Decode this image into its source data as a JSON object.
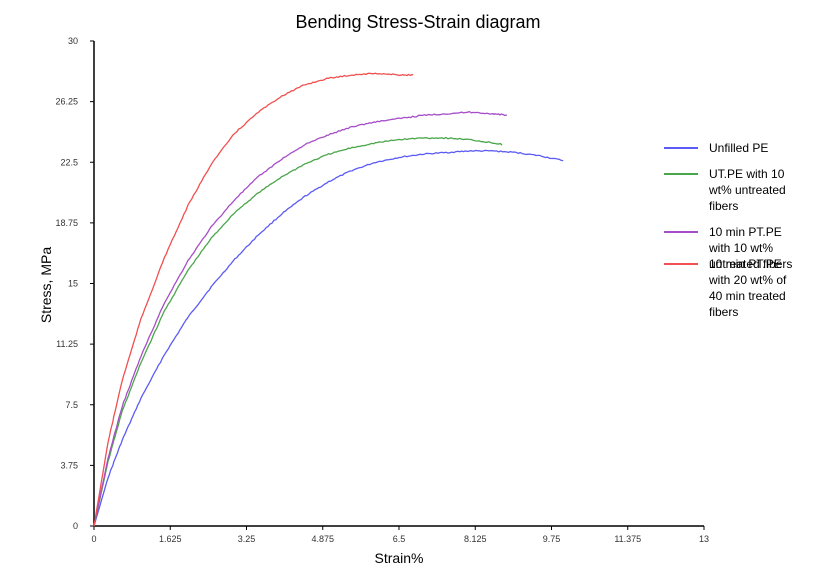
{
  "chart_data": {
    "type": "line",
    "title": "Bending  Stress-Strain diagram",
    "xlabel": "Strain%",
    "ylabel": "Stress, MPa",
    "xlim": [
      0,
      13
    ],
    "ylim": [
      0,
      30
    ],
    "xticks": [
      "0",
      "1.625",
      "3.25",
      "4.875",
      "6.5",
      "8.125",
      "9.75",
      "11.375",
      "13"
    ],
    "yticks": [
      "0",
      "3.75",
      "7.5",
      "11.25",
      "15",
      "18.75",
      "22.5",
      "26.25",
      "30"
    ],
    "grid": false,
    "legend_position": "right",
    "series": [
      {
        "name": "Unfilled PE",
        "color": "#5b5bf5",
        "x": [
          0,
          0.3,
          0.6,
          1.0,
          1.5,
          2.0,
          2.5,
          3.0,
          3.5,
          4.0,
          4.5,
          5.0,
          5.5,
          6.0,
          6.5,
          7.0,
          7.5,
          8.0,
          8.5,
          9.0,
          9.5,
          10.0
        ],
        "y": [
          0,
          3.0,
          5.3,
          7.9,
          10.6,
          12.9,
          14.8,
          16.5,
          18.0,
          19.3,
          20.4,
          21.3,
          22.0,
          22.5,
          22.8,
          23.0,
          23.1,
          23.2,
          23.2,
          23.1,
          22.9,
          22.6
        ]
      },
      {
        "name": "UT.PE  with 10 wt% untreated fibers",
        "color": "#4aa64a",
        "x": [
          0,
          0.3,
          0.6,
          1.0,
          1.5,
          2.0,
          2.5,
          3.0,
          3.5,
          4.0,
          4.5,
          5.0,
          5.5,
          6.0,
          6.5,
          7.0,
          7.5,
          8.0,
          8.5,
          8.7
        ],
        "y": [
          0,
          4.0,
          7.1,
          10.1,
          13.3,
          15.8,
          17.8,
          19.4,
          20.6,
          21.6,
          22.4,
          23.0,
          23.4,
          23.7,
          23.9,
          24.0,
          24.0,
          23.9,
          23.7,
          23.6
        ]
      },
      {
        "name": "10 min  PT.PE with 10 wt% untreated fibers",
        "color": "#a64dc8",
        "x": [
          0,
          0.3,
          0.6,
          1.0,
          1.5,
          2.0,
          2.5,
          3.0,
          3.5,
          4.0,
          4.5,
          5.0,
          5.5,
          6.0,
          6.5,
          7.0,
          7.5,
          8.0,
          8.5,
          8.8
        ],
        "y": [
          0,
          4.2,
          7.4,
          10.5,
          13.8,
          16.4,
          18.5,
          20.2,
          21.6,
          22.7,
          23.6,
          24.2,
          24.7,
          25.0,
          25.2,
          25.4,
          25.5,
          25.6,
          25.5,
          25.4
        ]
      },
      {
        "name": " 10 min  PT.PE with 20 wt% of 40 min treated fibers",
        "color": "#f05050",
        "x": [
          0,
          0.3,
          0.6,
          1.0,
          1.5,
          2.0,
          2.5,
          3.0,
          3.5,
          4.0,
          4.5,
          5.0,
          5.5,
          6.0,
          6.5,
          6.8
        ],
        "y": [
          0,
          5.2,
          9.0,
          12.8,
          16.6,
          19.8,
          22.4,
          24.3,
          25.6,
          26.6,
          27.3,
          27.7,
          27.9,
          28.0,
          27.9,
          27.9
        ]
      }
    ]
  }
}
